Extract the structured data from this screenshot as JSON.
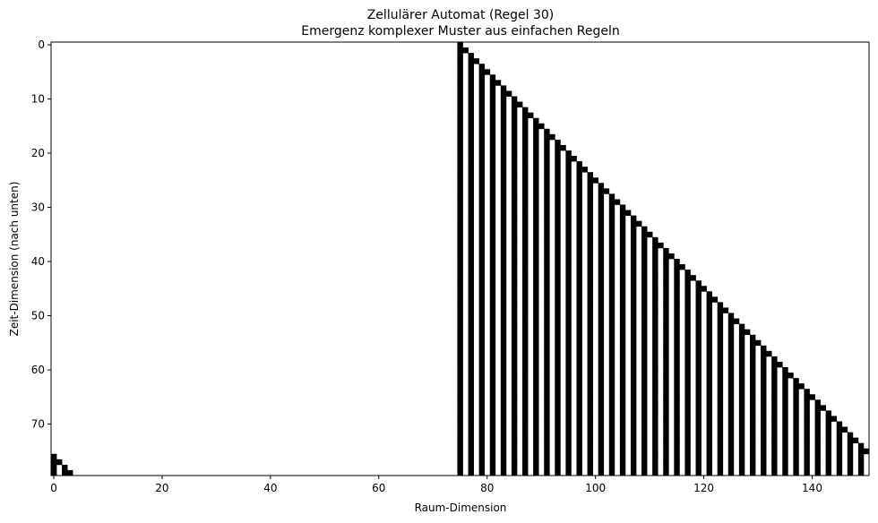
{
  "chart_data": {
    "type": "heatmap",
    "title": "Zellulärer Automat (Regel 30)",
    "subtitle": "Emergenz komplexer Muster aus einfachen Regeln",
    "xlabel": "Raum-Dimension",
    "ylabel": "Zeit-Dimension (nach unten)",
    "columns": 151,
    "rows": 80,
    "xlim": [
      0,
      151
    ],
    "ylim": [
      80,
      0
    ],
    "x_ticks": [
      0,
      20,
      40,
      60,
      80,
      100,
      120,
      140
    ],
    "y_ticks": [
      0,
      10,
      20,
      30,
      40,
      50,
      60,
      70
    ],
    "grid": false,
    "colormap": "binary",
    "colors": {
      "on": "#000000",
      "off": "#ffffff"
    },
    "pattern": {
      "rule": "x - 75 == t  or  (x - 75 <= t and (x - 75) is even), wrap-around at column 151",
      "start_column": 75
    }
  }
}
